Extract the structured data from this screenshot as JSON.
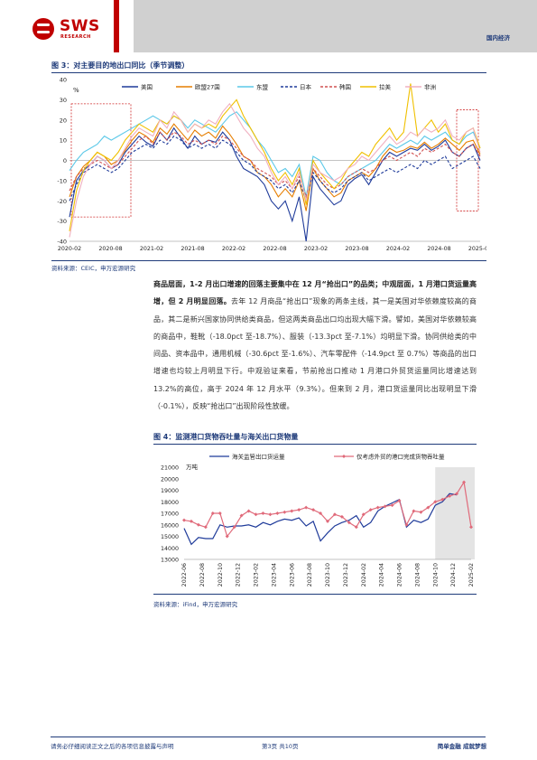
{
  "header": {
    "logo_text": "SWS",
    "logo_sub": "RESEARCH",
    "section_tag": "国内经济",
    "colors": {
      "brand_red": "#c00000",
      "brand_blue": "#1f3b7a",
      "band_gray": "#d0d0d0"
    }
  },
  "figure3": {
    "title": "图 3：对主要目的地出口同比（季节调整）",
    "source": "资料来源：CEIC，申万宏源研究",
    "chart_data": {
      "type": "line",
      "unit_label": "%",
      "ylim": [
        -40,
        40
      ],
      "yticks": [
        "40",
        "30",
        "20",
        "10",
        "0",
        "-10",
        "-20",
        "-30",
        "-40"
      ],
      "xticks": [
        "2020-02",
        "2020-08",
        "2021-02",
        "2021-08",
        "2022-02",
        "2022-08",
        "2023-02",
        "2023-08",
        "2024-02",
        "2024-08",
        "2025-02"
      ],
      "legend_placement": "top",
      "series": [
        {
          "name": "美国",
          "color": "#1f3b9a",
          "dash": "solid",
          "values": [
            -28,
            -10,
            -5,
            -2,
            2,
            0,
            -4,
            -2,
            4,
            8,
            12,
            9,
            7,
            14,
            10,
            16,
            11,
            6,
            12,
            8,
            10,
            9,
            14,
            10,
            2,
            -4,
            -6,
            -8,
            -12,
            -20,
            -24,
            -20,
            -30,
            -18,
            -40,
            -8,
            -14,
            -18,
            -22,
            -20,
            -12,
            -9,
            -7,
            -12,
            -6,
            0,
            4,
            2,
            4,
            6,
            5,
            8,
            5,
            7,
            10,
            4,
            2,
            6,
            8,
            0
          ]
        },
        {
          "name": "欧盟27国",
          "color": "#e67e00",
          "dash": "solid",
          "values": [
            -18,
            -8,
            -3,
            0,
            4,
            2,
            -2,
            0,
            5,
            10,
            14,
            12,
            9,
            16,
            13,
            18,
            14,
            10,
            15,
            12,
            14,
            11,
            17,
            13,
            8,
            2,
            0,
            -6,
            -8,
            -12,
            -18,
            -14,
            -18,
            -10,
            -25,
            -4,
            -10,
            -14,
            -18,
            -16,
            -10,
            -8,
            -6,
            -8,
            -4,
            2,
            6,
            4,
            5,
            7,
            6,
            9,
            6,
            8,
            11,
            8,
            5,
            9,
            10,
            3
          ]
        },
        {
          "name": "东盟",
          "color": "#5bc8e8",
          "dash": "solid",
          "values": [
            -5,
            0,
            4,
            6,
            8,
            12,
            10,
            12,
            14,
            16,
            18,
            20,
            22,
            20,
            18,
            22,
            20,
            16,
            20,
            18,
            16,
            14,
            18,
            22,
            24,
            20,
            16,
            10,
            6,
            0,
            -6,
            -4,
            -8,
            -2,
            -18,
            2,
            0,
            -6,
            -10,
            -12,
            -8,
            -6,
            -4,
            -2,
            0,
            4,
            8,
            6,
            8,
            10,
            8,
            12,
            10,
            12,
            14,
            10,
            8,
            12,
            14,
            6
          ]
        },
        {
          "name": "日本",
          "color": "#1f3b9a",
          "dash": "dashed",
          "values": [
            -20,
            -12,
            -6,
            -4,
            -2,
            -4,
            -6,
            -4,
            0,
            4,
            6,
            8,
            6,
            10,
            8,
            12,
            10,
            6,
            8,
            6,
            8,
            6,
            10,
            8,
            4,
            0,
            -2,
            -6,
            -8,
            -10,
            -14,
            -12,
            -16,
            -10,
            -20,
            -6,
            -10,
            -14,
            -16,
            -14,
            -10,
            -8,
            -6,
            -10,
            -8,
            -6,
            -4,
            -6,
            -4,
            -2,
            -4,
            0,
            -2,
            0,
            2,
            -4,
            -2,
            0,
            2,
            -4
          ]
        },
        {
          "name": "韩国",
          "color": "#d05050",
          "dash": "dashed",
          "values": [
            -15,
            -8,
            -4,
            -2,
            0,
            -2,
            -4,
            -2,
            2,
            6,
            10,
            12,
            8,
            14,
            10,
            14,
            12,
            8,
            10,
            8,
            10,
            8,
            12,
            10,
            6,
            2,
            0,
            -4,
            -6,
            -8,
            -12,
            -10,
            -14,
            -8,
            -18,
            -4,
            -8,
            -12,
            -14,
            -12,
            -8,
            -6,
            -4,
            -6,
            -4,
            0,
            2,
            0,
            2,
            4,
            2,
            6,
            4,
            6,
            8,
            4,
            2,
            6,
            8,
            2
          ]
        },
        {
          "name": "拉美",
          "color": "#f0c000",
          "dash": "solid",
          "values": [
            -35,
            -15,
            -5,
            0,
            4,
            2,
            0,
            4,
            10,
            14,
            18,
            16,
            14,
            20,
            18,
            22,
            20,
            14,
            18,
            16,
            18,
            16,
            22,
            26,
            30,
            22,
            16,
            10,
            4,
            -4,
            -10,
            -6,
            -12,
            -4,
            -22,
            0,
            -6,
            -10,
            -14,
            -10,
            -4,
            0,
            4,
            2,
            8,
            12,
            16,
            10,
            14,
            38,
            12,
            16,
            20,
            14,
            18,
            10,
            8,
            14,
            16,
            6
          ]
        },
        {
          "name": "非洲",
          "color": "#f0b0c0",
          "dash": "solid",
          "values": [
            -38,
            -20,
            -8,
            -2,
            2,
            0,
            -4,
            0,
            6,
            12,
            16,
            14,
            12,
            20,
            16,
            24,
            20,
            14,
            18,
            16,
            20,
            18,
            24,
            28,
            22,
            16,
            12,
            6,
            2,
            -6,
            -12,
            -8,
            -14,
            -6,
            -20,
            -2,
            -6,
            -8,
            -10,
            -8,
            -4,
            -2,
            2,
            0,
            4,
            8,
            12,
            8,
            10,
            14,
            12,
            16,
            14,
            16,
            20,
            12,
            10,
            14,
            16,
            4
          ]
        }
      ]
    }
  },
  "paragraph": {
    "bold": "商品层面，1-2 月出口增速的回落主要集中在 12 月“抢出口”的品类；中观层面，1 月港口货运量高增，但 2 月明显回落。",
    "text": "去年 12 月商品“抢出口”现象的两条主线，其一是美国对华依赖度较高的商品，其二是新兴国家协同供给类商品，但这两类商品出口均出现大幅下滑。譬如，美国对华依赖较高的商品中，鞋靴（-18.0pct 至-18.7%）、服装（-13.3pct 至-7.1%）均明显下滑。协同供给类的中间品、资本品中，通用机械（-30.6pct 至-1.6%）、汽车零配件（-14.9pct 至 0.7%）等商品的出口增速也均较上月明显下行。中观验证来看，节前抢出口推动 1 月港口外贸货运量同比增速达到 13.2%的高位，高于 2024 年 12 月水平（9.3%）。但来到 2 月，港口货运量同比出现明显下滑（-0.1%），反映“抢出口”出现阶段性放缓。"
  },
  "figure4": {
    "title": "图 4：监测港口货物吞吐量与海关出口货物量",
    "source": "资料来源：iFind，申万宏源研究",
    "chart_data": {
      "type": "line",
      "unit_label": "万吨",
      "ylim": [
        13000,
        21000
      ],
      "yticks": [
        "21000",
        "20000",
        "19000",
        "18000",
        "17000",
        "16000",
        "15000",
        "14000",
        "13000"
      ],
      "xticks": [
        "2022-06",
        "2022-08",
        "2022-10",
        "2022-12",
        "2023-02",
        "2023-04",
        "2023-06",
        "2023-08",
        "2023-10",
        "2023-12",
        "2024-02",
        "2024-04",
        "2024-06",
        "2024-08",
        "2024-10",
        "2024-12",
        "2025-02"
      ],
      "legend_placement": "top",
      "shaded_region": [
        "2024-11",
        "2025-02"
      ],
      "series": [
        {
          "name": "海关监管出口货运量",
          "color": "#1f3b9a",
          "marker": "none",
          "values": [
            15700,
            14300,
            14900,
            14800,
            14800,
            16000,
            15800,
            15900,
            15900,
            16000,
            15800,
            16200,
            16000,
            16300,
            16500,
            16400,
            16600,
            15900,
            16300,
            14600,
            15300,
            15900,
            16200,
            16400,
            16800,
            15800,
            16200,
            17200,
            17600,
            17900,
            18200,
            15800,
            16400,
            16200,
            16500,
            17700,
            18000,
            18700,
            18600,
            null,
            null
          ]
        },
        {
          "name": "仅考虑外贸的港口完成货物吞吐量",
          "color": "#e06a7a",
          "marker": "diamond",
          "values": [
            16400,
            16300,
            16000,
            15800,
            17000,
            17000,
            15000,
            15800,
            16800,
            17200,
            16900,
            17000,
            16900,
            17000,
            17100,
            17200,
            17300,
            17500,
            17300,
            17000,
            16300,
            16900,
            16700,
            16200,
            15800,
            16900,
            17300,
            17500,
            17600,
            17700,
            18100,
            16000,
            17200,
            17100,
            17500,
            18000,
            18200,
            18500,
            18700,
            19700,
            15800
          ]
        }
      ]
    }
  },
  "footer": {
    "disclaimer": "请务必仔细阅读正文之后的各项信息披露与声明",
    "page": "第3页 共10页",
    "slogan": "简单金融 成就梦想"
  }
}
